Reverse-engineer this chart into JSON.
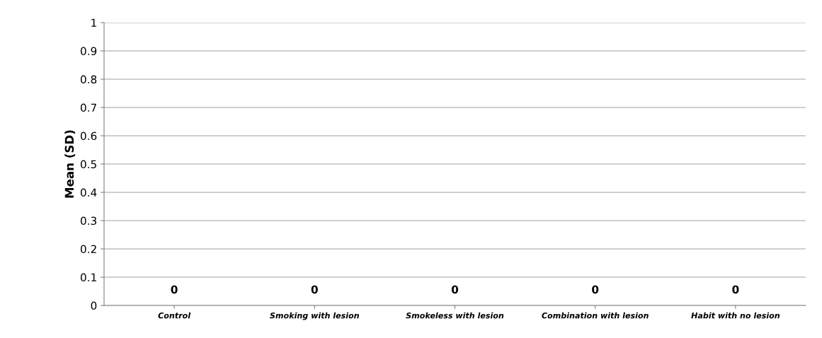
{
  "chart_data": {
    "type": "bar",
    "ylabel": "Mean (SD)",
    "categories": [
      "Control",
      "Smoking with lesion",
      "Smokeless with lesion",
      "Combination with lesion",
      "Habit with no lesion"
    ],
    "values": [
      0,
      0,
      0,
      0,
      0
    ],
    "ylim": [
      0,
      1
    ],
    "yticks": [
      0,
      0.1,
      0.2,
      0.3,
      0.4,
      0.5,
      0.6,
      0.7,
      0.8,
      0.9,
      1
    ],
    "grid": "y",
    "data_labels": true,
    "legend": false
  }
}
